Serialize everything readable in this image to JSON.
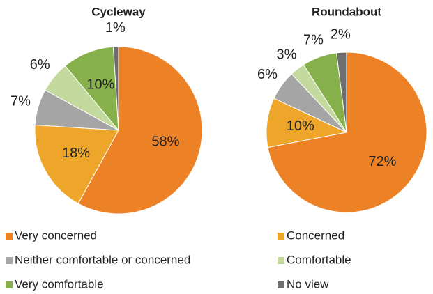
{
  "chart_data": [
    {
      "type": "pie",
      "title": "Cycleway",
      "categories": [
        "Very concerned",
        "Concerned",
        "Neither comfortable or concerned",
        "Comfortable",
        "Very comfortable",
        "No view"
      ],
      "colors": [
        "#ed8126",
        "#eda62a",
        "#a5a5a5",
        "#c3d99d",
        "#86b04a",
        "#6e6e6e"
      ],
      "values": [
        58,
        18,
        7,
        6,
        10,
        1
      ],
      "value_labels": [
        "58%",
        "18%",
        "7%",
        "6%",
        "10%",
        "1%"
      ],
      "legend": "bottom"
    },
    {
      "type": "pie",
      "title": "Roundabout",
      "values": [
        72,
        10,
        6,
        3,
        7,
        2
      ],
      "value_labels": [
        "72%",
        "10%",
        "6%",
        "3%",
        "7%",
        "2%"
      ]
    }
  ]
}
